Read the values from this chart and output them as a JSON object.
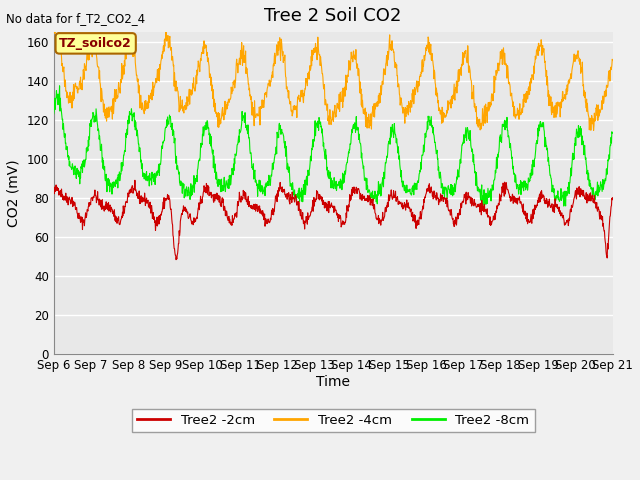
{
  "title": "Tree 2 Soil CO2",
  "no_data_text": "No data for f_T2_CO2_4",
  "ylabel": "CO2 (mV)",
  "xlabel": "Time",
  "legend_label": "TZ_soilco2",
  "ylim": [
    0,
    165
  ],
  "yticks": [
    0,
    20,
    40,
    60,
    80,
    100,
    120,
    140,
    160
  ],
  "xtick_labels": [
    "Sep 6",
    "Sep 7",
    "Sep 8",
    "Sep 9",
    "Sep 10",
    "Sep 11",
    "Sep 12",
    "Sep 13",
    "Sep 14",
    "Sep 15",
    "Sep 16",
    "Sep 17",
    "Sep 18",
    "Sep 19",
    "Sep 20",
    "Sep 21"
  ],
  "bg_color": "#e8e8e8",
  "fig_color": "#f0f0f0",
  "grid_color": "#ffffff",
  "line_red": "#cc0000",
  "line_orange": "#ffa500",
  "line_green": "#00ee00",
  "legend_entries": [
    "Tree2 -2cm",
    "Tree2 -4cm",
    "Tree2 -8cm"
  ],
  "legend_colors": [
    "#cc0000",
    "#ffa500",
    "#00ee00"
  ],
  "title_fontsize": 13,
  "axis_fontsize": 10,
  "tick_fontsize": 8.5,
  "label_box_facecolor": "#ffff99",
  "label_box_edgecolor": "#aa6600",
  "label_box_textcolor": "#880000"
}
